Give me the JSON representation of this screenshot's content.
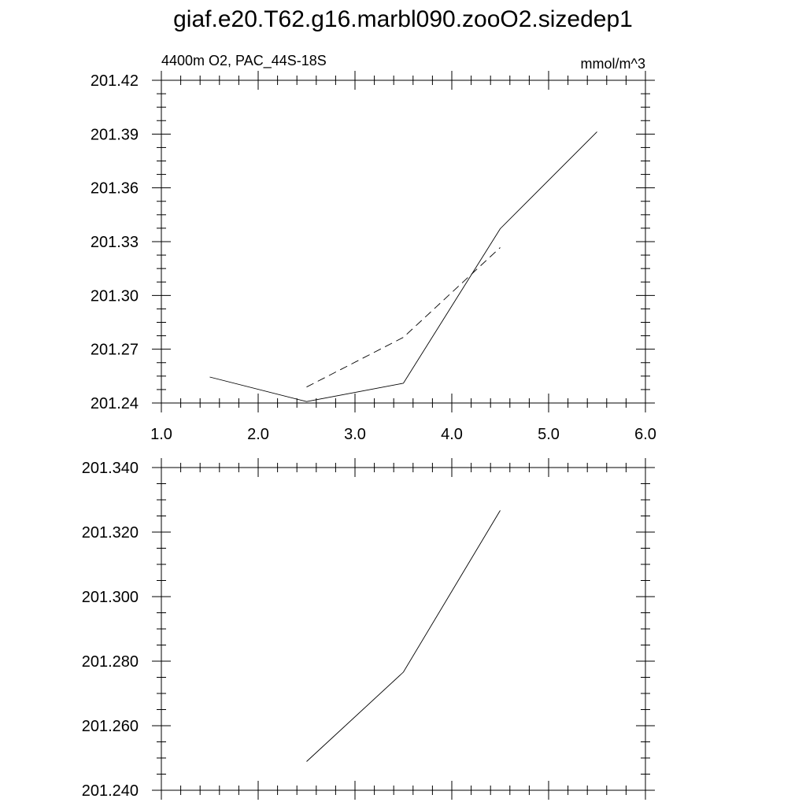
{
  "title": "giaf.e20.T62.g16.marbl090.zooO2.sizedep1",
  "chart_data": [
    {
      "type": "line",
      "subtitle_left": "4400m O2, PAC_44S-18S",
      "subtitle_right": "mmol/m^3",
      "xlim": [
        1.0,
        6.0
      ],
      "ylim": [
        201.24,
        201.42
      ],
      "xticks": [
        "1.0",
        "2.0",
        "3.0",
        "4.0",
        "5.0",
        "6.0"
      ],
      "yticks": [
        "201.24",
        "201.27",
        "201.30",
        "201.33",
        "201.36",
        "201.39",
        "201.42"
      ],
      "series": [
        {
          "style": "solid",
          "x": [
            1.5,
            2.5,
            3.5,
            4.5,
            5.5
          ],
          "y": [
            201.2545,
            201.2408,
            201.251,
            201.3372,
            201.3913
          ]
        },
        {
          "style": "dashed",
          "x": [
            2.5,
            3.5,
            4.5
          ],
          "y": [
            201.2489,
            201.2766,
            201.3267
          ]
        }
      ]
    },
    {
      "type": "line",
      "xlim": [
        1.0,
        6.0
      ],
      "ylim": [
        201.24,
        201.34
      ],
      "yticks": [
        "201.240",
        "201.260",
        "201.280",
        "201.300",
        "201.320",
        "201.340"
      ],
      "series": [
        {
          "style": "solid",
          "x": [
            2.5,
            3.5,
            4.5
          ],
          "y": [
            201.2489,
            201.2766,
            201.3267
          ]
        }
      ]
    }
  ]
}
